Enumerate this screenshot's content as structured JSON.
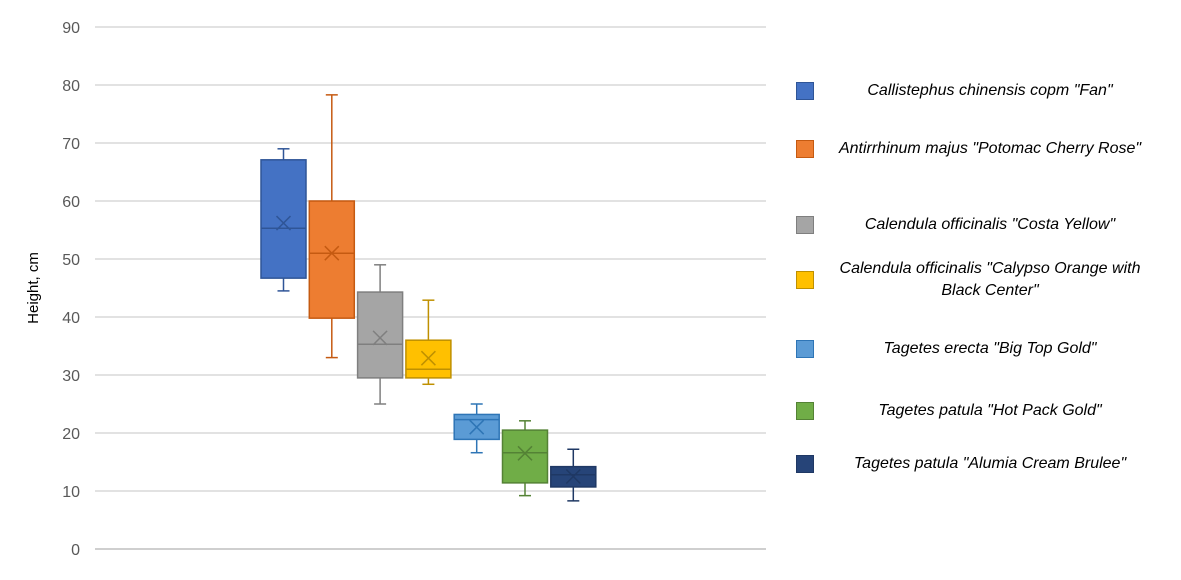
{
  "chart_data": {
    "type": "boxplot",
    "title": "",
    "xlabel": "",
    "ylabel": "Height, cm",
    "ylim": [
      0,
      90
    ],
    "yticks": [
      "0",
      "10",
      "20",
      "30",
      "40",
      "50",
      "60",
      "70",
      "80",
      "90"
    ],
    "grid": true,
    "legend_position": "right",
    "series": [
      {
        "name": "Callistephus chinensis copm \"Fan\"",
        "color": "#4472C4",
        "stroke": "#2F5597",
        "min": 44.5,
        "q1": 46.7,
        "median": 55.3,
        "q3": 67.1,
        "max": 69,
        "mean": 56.2
      },
      {
        "name": "Antirrhinum majus \"Potomac Cherry Rose\"",
        "color": "#ED7D31",
        "stroke": "#C55A11",
        "min": 33,
        "q1": 39.8,
        "median": 51,
        "q3": 60,
        "max": 78.3,
        "mean": 51
      },
      {
        "name": "Calendula officinalis \"Costa Yellow\"",
        "color": "#A5A5A5",
        "stroke": "#7F7F7F",
        "min": 25,
        "q1": 29.5,
        "median": 35.3,
        "q3": 44.3,
        "max": 49,
        "mean": 36.4
      },
      {
        "name": "Calendula officinalis \"Calypso Orange with Black Center\"",
        "color": "#FFC000",
        "stroke": "#BF9000",
        "min": 28.4,
        "q1": 29.5,
        "median": 31,
        "q3": 36,
        "max": 42.9,
        "mean": 32.9
      },
      {
        "name": "Tagetes erecta \"Big Top Gold\"",
        "color": "#5B9BD5",
        "stroke": "#2E75B6",
        "min": 16.6,
        "q1": 18.9,
        "median": 22.3,
        "q3": 23.2,
        "max": 25,
        "mean": 21
      },
      {
        "name": "Tagetes patula \"Hot Pack Gold\"",
        "color": "#70AD47",
        "stroke": "#548235",
        "min": 9.2,
        "q1": 11.4,
        "median": 16.6,
        "q3": 20.5,
        "max": 22.1,
        "mean": 16.5
      },
      {
        "name": "Tagetes patula \"Alumia Cream Brulee\"",
        "color": "#264478",
        "stroke": "#1F3864",
        "min": 8.3,
        "q1": 10.7,
        "median": 12.8,
        "q3": 14.2,
        "max": 17.2,
        "mean": 12.5
      }
    ]
  }
}
